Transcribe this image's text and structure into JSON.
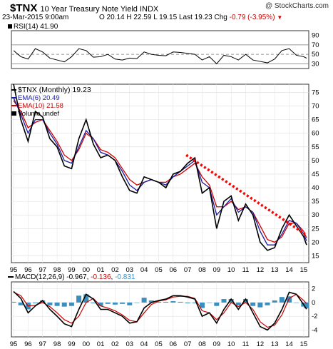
{
  "header": {
    "symbol": "$TNX",
    "description": "10 Year Treasury Note Yield INDX",
    "watermark": "@ StockCharts.com",
    "date": "23-Mar-2015 9:00am",
    "open": "O 20.14",
    "high": "H 22.59",
    "low": "L 19.15",
    "last": "Last 19.23",
    "change_label": "Chg",
    "change": "-0.79 (-3.95%)"
  },
  "rsi_panel": {
    "label": "RSI(14) 41.90",
    "y_ticks": [
      "90",
      "70",
      "50",
      "30"
    ]
  },
  "price_panel": {
    "legend": [
      {
        "text": "$TNX (Monthly) 19.23",
        "color": "#000000"
      },
      {
        "text": "EMA(6) 20.49",
        "color": "#1a1aa0"
      },
      {
        "text": "EMA(10) 21.58",
        "color": "#cc0000"
      },
      {
        "text": "Volume undef",
        "color": "#000000"
      }
    ],
    "y_ticks": [
      "75",
      "70",
      "65",
      "60",
      "55",
      "50",
      "45",
      "40",
      "35",
      "30",
      "25",
      "20",
      "15"
    ]
  },
  "x_ticks": [
    "95",
    "96",
    "97",
    "98",
    "99",
    "00",
    "01",
    "02",
    "03",
    "04",
    "05",
    "06",
    "07",
    "08",
    "09",
    "10",
    "11",
    "12",
    "13",
    "14",
    "15"
  ],
  "macd_panel": {
    "label_prefix": "MACD(12,26,9)",
    "macd": "-0.967",
    "signal": "-0.136",
    "hist": "-0.831",
    "y_ticks": [
      "2",
      "0",
      "-2",
      "-4"
    ]
  },
  "colors": {
    "price": "#000000",
    "ema6": "#1a1aa0",
    "ema10": "#cc0000",
    "trendline": "#ff0000",
    "histogram": "#3a8fbf",
    "panel_border": "#333333",
    "rsi_ref": "#777777"
  },
  "chart_data": {
    "type": "line",
    "frequency": "monthly",
    "x": [
      1995,
      1995.5,
      1996,
      1996.5,
      1997,
      1997.5,
      1998,
      1998.5,
      1999,
      1999.5,
      2000,
      2000.5,
      2001,
      2001.5,
      2002,
      2002.5,
      2003,
      2003.5,
      2004,
      2004.5,
      2005,
      2005.5,
      2006,
      2006.5,
      2007,
      2007.5,
      2008,
      2008.5,
      2009,
      2009.5,
      2010,
      2010.5,
      2011,
      2011.5,
      2012,
      2012.5,
      2013,
      2013.5,
      2014,
      2014.5,
      2015,
      2015.2
    ],
    "series": [
      {
        "name": "$TNX (Monthly)",
        "values": [
          78,
          65,
          57,
          68,
          66,
          58,
          55,
          48,
          47,
          58,
          65,
          56,
          51,
          52,
          50,
          44,
          39,
          38,
          44,
          43,
          42,
          40,
          45,
          46,
          49,
          51,
          38,
          40,
          25,
          35,
          37,
          28,
          34,
          30,
          20,
          17,
          18,
          25,
          30,
          26,
          22,
          19
        ]
      },
      {
        "name": "EMA(6)",
        "values": [
          73,
          67,
          60,
          65,
          65,
          60,
          56,
          50,
          49,
          55,
          61,
          58,
          53,
          52,
          50,
          46,
          41,
          39,
          42,
          43,
          42,
          41,
          44,
          46,
          48,
          50,
          42,
          40,
          30,
          33,
          36,
          31,
          33,
          31,
          24,
          19,
          19,
          23,
          28,
          27,
          23,
          20.49
        ]
      },
      {
        "name": "EMA(10)",
        "values": [
          72,
          68,
          62,
          64,
          65,
          61,
          57,
          52,
          50,
          54,
          60,
          58,
          54,
          53,
          51,
          47,
          43,
          41,
          42,
          43,
          42,
          42,
          44,
          45,
          47,
          49,
          44,
          41,
          33,
          33,
          35,
          32,
          33,
          31,
          26,
          21,
          20,
          22,
          27,
          27,
          24,
          21.58
        ]
      }
    ],
    "trendline": {
      "x": [
        2006.9,
        2015.1
      ],
      "y": [
        52,
        23
      ]
    },
    "rsi": {
      "ylim": [
        20,
        100
      ],
      "ref_levels": [
        70,
        50,
        30
      ],
      "x": [
        1995,
        1995.5,
        1996,
        1996.5,
        1997,
        1997.5,
        1998,
        1998.5,
        1999,
        1999.5,
        2000,
        2000.5,
        2001,
        2001.5,
        2002,
        2002.5,
        2003,
        2003.5,
        2004,
        2004.5,
        2005,
        2005.5,
        2006,
        2006.5,
        2007,
        2007.5,
        2008,
        2008.5,
        2009,
        2009.5,
        2010,
        2010.5,
        2011,
        2011.5,
        2012,
        2012.5,
        2013,
        2013.5,
        2014,
        2014.5,
        2015,
        2015.2
      ],
      "values": [
        58,
        45,
        40,
        62,
        55,
        42,
        38,
        34,
        45,
        62,
        58,
        44,
        45,
        50,
        40,
        38,
        42,
        41,
        55,
        50,
        48,
        47,
        55,
        54,
        52,
        50,
        38,
        45,
        30,
        48,
        45,
        38,
        50,
        38,
        35,
        32,
        40,
        58,
        62,
        48,
        45,
        41.9
      ]
    },
    "macd": {
      "ylim": [
        -5,
        3
      ],
      "x": [
        1995,
        1995.5,
        1996,
        1996.5,
        1997,
        1997.5,
        1998,
        1998.5,
        1999,
        1999.5,
        2000,
        2000.5,
        2001,
        2001.5,
        2002,
        2002.5,
        2003,
        2003.5,
        2004,
        2004.5,
        2005,
        2005.5,
        2006,
        2006.5,
        2007,
        2007.5,
        2008,
        2008.5,
        2009,
        2009.5,
        2010,
        2010.5,
        2011,
        2011.5,
        2012,
        2012.5,
        2013,
        2013.5,
        2014,
        2014.5,
        2015,
        2015.2
      ],
      "macd": [
        1.6,
        0.6,
        -1.5,
        -0.5,
        0.3,
        -1.0,
        -2.0,
        -3.1,
        -3.5,
        -1.0,
        1.2,
        0.5,
        -1.0,
        -1.0,
        -1.5,
        -2.0,
        -3.0,
        -2.8,
        -0.8,
        0.0,
        0.3,
        0.5,
        1.0,
        1.0,
        0.8,
        0.5,
        -2.0,
        -1.5,
        -3.0,
        -1.0,
        0.5,
        -1.0,
        0.5,
        -1.5,
        -3.5,
        -4.0,
        -3.0,
        -1.0,
        1.5,
        1.2,
        -0.3,
        -0.967
      ],
      "signal": [
        1.5,
        1.0,
        -0.5,
        -0.4,
        0.0,
        -0.6,
        -1.5,
        -2.5,
        -3.0,
        -2.0,
        0.0,
        0.6,
        -0.5,
        -0.8,
        -1.2,
        -1.8,
        -2.6,
        -2.8,
        -1.5,
        -0.3,
        0.2,
        0.4,
        0.8,
        0.9,
        0.9,
        0.6,
        -1.2,
        -1.5,
        -2.5,
        -1.5,
        0.0,
        -0.6,
        0.0,
        -1.0,
        -2.8,
        -3.6,
        -3.3,
        -1.8,
        0.6,
        1.2,
        0.3,
        -0.136
      ],
      "hist": [
        0.1,
        -0.4,
        -1.0,
        -0.1,
        0.3,
        -0.4,
        -0.5,
        -0.6,
        -0.5,
        1.0,
        1.2,
        -0.1,
        -0.5,
        -0.2,
        -0.3,
        -0.2,
        -0.4,
        0.0,
        0.7,
        0.3,
        0.1,
        0.1,
        0.2,
        0.1,
        -0.1,
        -0.1,
        -0.8,
        0.0,
        -0.5,
        0.5,
        0.5,
        -0.4,
        0.5,
        -0.5,
        -0.7,
        -0.4,
        0.3,
        0.8,
        0.9,
        0.0,
        -0.6,
        -0.831
      ]
    }
  }
}
